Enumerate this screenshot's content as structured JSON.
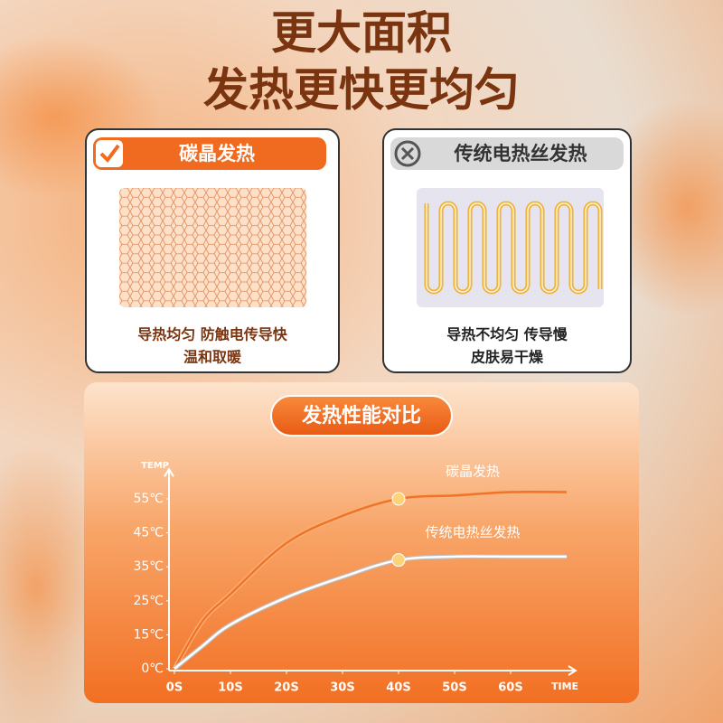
{
  "header": {
    "lines": [
      "更大面积",
      "发热更快更均匀"
    ]
  },
  "cards": [
    {
      "title": "碳晶发热",
      "lines": [
        "导热均匀 防触电传导快",
        "温和取暖"
      ]
    },
    {
      "title": "传统电热丝发热",
      "lines": [
        "导热不均匀 传导慢",
        "皮肤易干燥"
      ]
    }
  ],
  "chart_data": {
    "type": "line",
    "title": "发热性能对比",
    "y_label": "TEMP",
    "x_label": "TIME",
    "x": [
      0,
      5,
      10,
      20,
      30,
      40,
      50,
      60,
      70
    ],
    "xlim": [
      0,
      70
    ],
    "xticks": [
      {
        "value": 0,
        "label": "0S"
      },
      {
        "value": 10,
        "label": "10S"
      },
      {
        "value": 20,
        "label": "20S"
      },
      {
        "value": 30,
        "label": "30S"
      },
      {
        "value": 40,
        "label": "40S"
      },
      {
        "value": 50,
        "label": "50S"
      },
      {
        "value": 60,
        "label": "60S"
      }
    ],
    "ylim": [
      0,
      60
    ],
    "yticks": [
      {
        "value": 0,
        "label": "0℃"
      },
      {
        "value": 15,
        "label": "15℃"
      },
      {
        "value": 25,
        "label": "25℃"
      },
      {
        "value": 35,
        "label": "35℃"
      },
      {
        "value": 45,
        "label": "45℃"
      },
      {
        "value": 55,
        "label": "55℃"
      }
    ],
    "series": [
      {
        "name": "碳晶发热",
        "color": "#f07428",
        "marker_x": 40,
        "values": [
          0,
          19,
          27,
          42,
          50,
          55,
          56,
          57,
          57
        ]
      },
      {
        "name": "传统电热丝发热",
        "color": "#ffffff",
        "marker_x": 40,
        "values": [
          0,
          10,
          18,
          26,
          32,
          37,
          38,
          38,
          38
        ]
      }
    ]
  }
}
